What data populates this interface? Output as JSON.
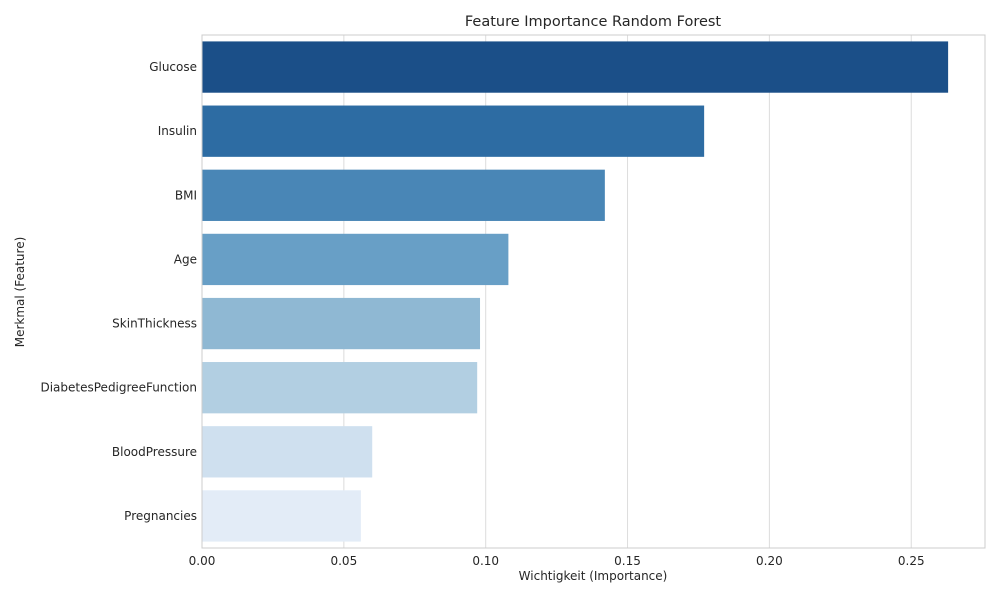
{
  "chart_data": {
    "type": "bar",
    "orientation": "horizontal",
    "title": "Feature Importance Random Forest",
    "xlabel": "Wichtigkeit (Importance)",
    "ylabel": "Merkmal (Feature)",
    "xlim": [
      0,
      0.276
    ],
    "xticks": [
      0.0,
      0.05,
      0.1,
      0.15,
      0.2,
      0.25
    ],
    "xtick_labels": [
      "0.00",
      "0.05",
      "0.10",
      "0.15",
      "0.20",
      "0.25"
    ],
    "grid": true,
    "palette": "Blues",
    "categories": [
      "Glucose",
      "Insulin",
      "BMI",
      "Age",
      "SkinThickness",
      "DiabetesPedigreeFunction",
      "BloodPressure",
      "Pregnancies"
    ],
    "values": [
      0.263,
      0.177,
      0.142,
      0.108,
      0.098,
      0.097,
      0.06,
      0.056
    ],
    "colors": [
      "#1b4f88",
      "#2d6ca3",
      "#4986b6",
      "#689fc6",
      "#8fb8d3",
      "#b2cfe2",
      "#cfe0ef",
      "#e3ecf7"
    ]
  }
}
